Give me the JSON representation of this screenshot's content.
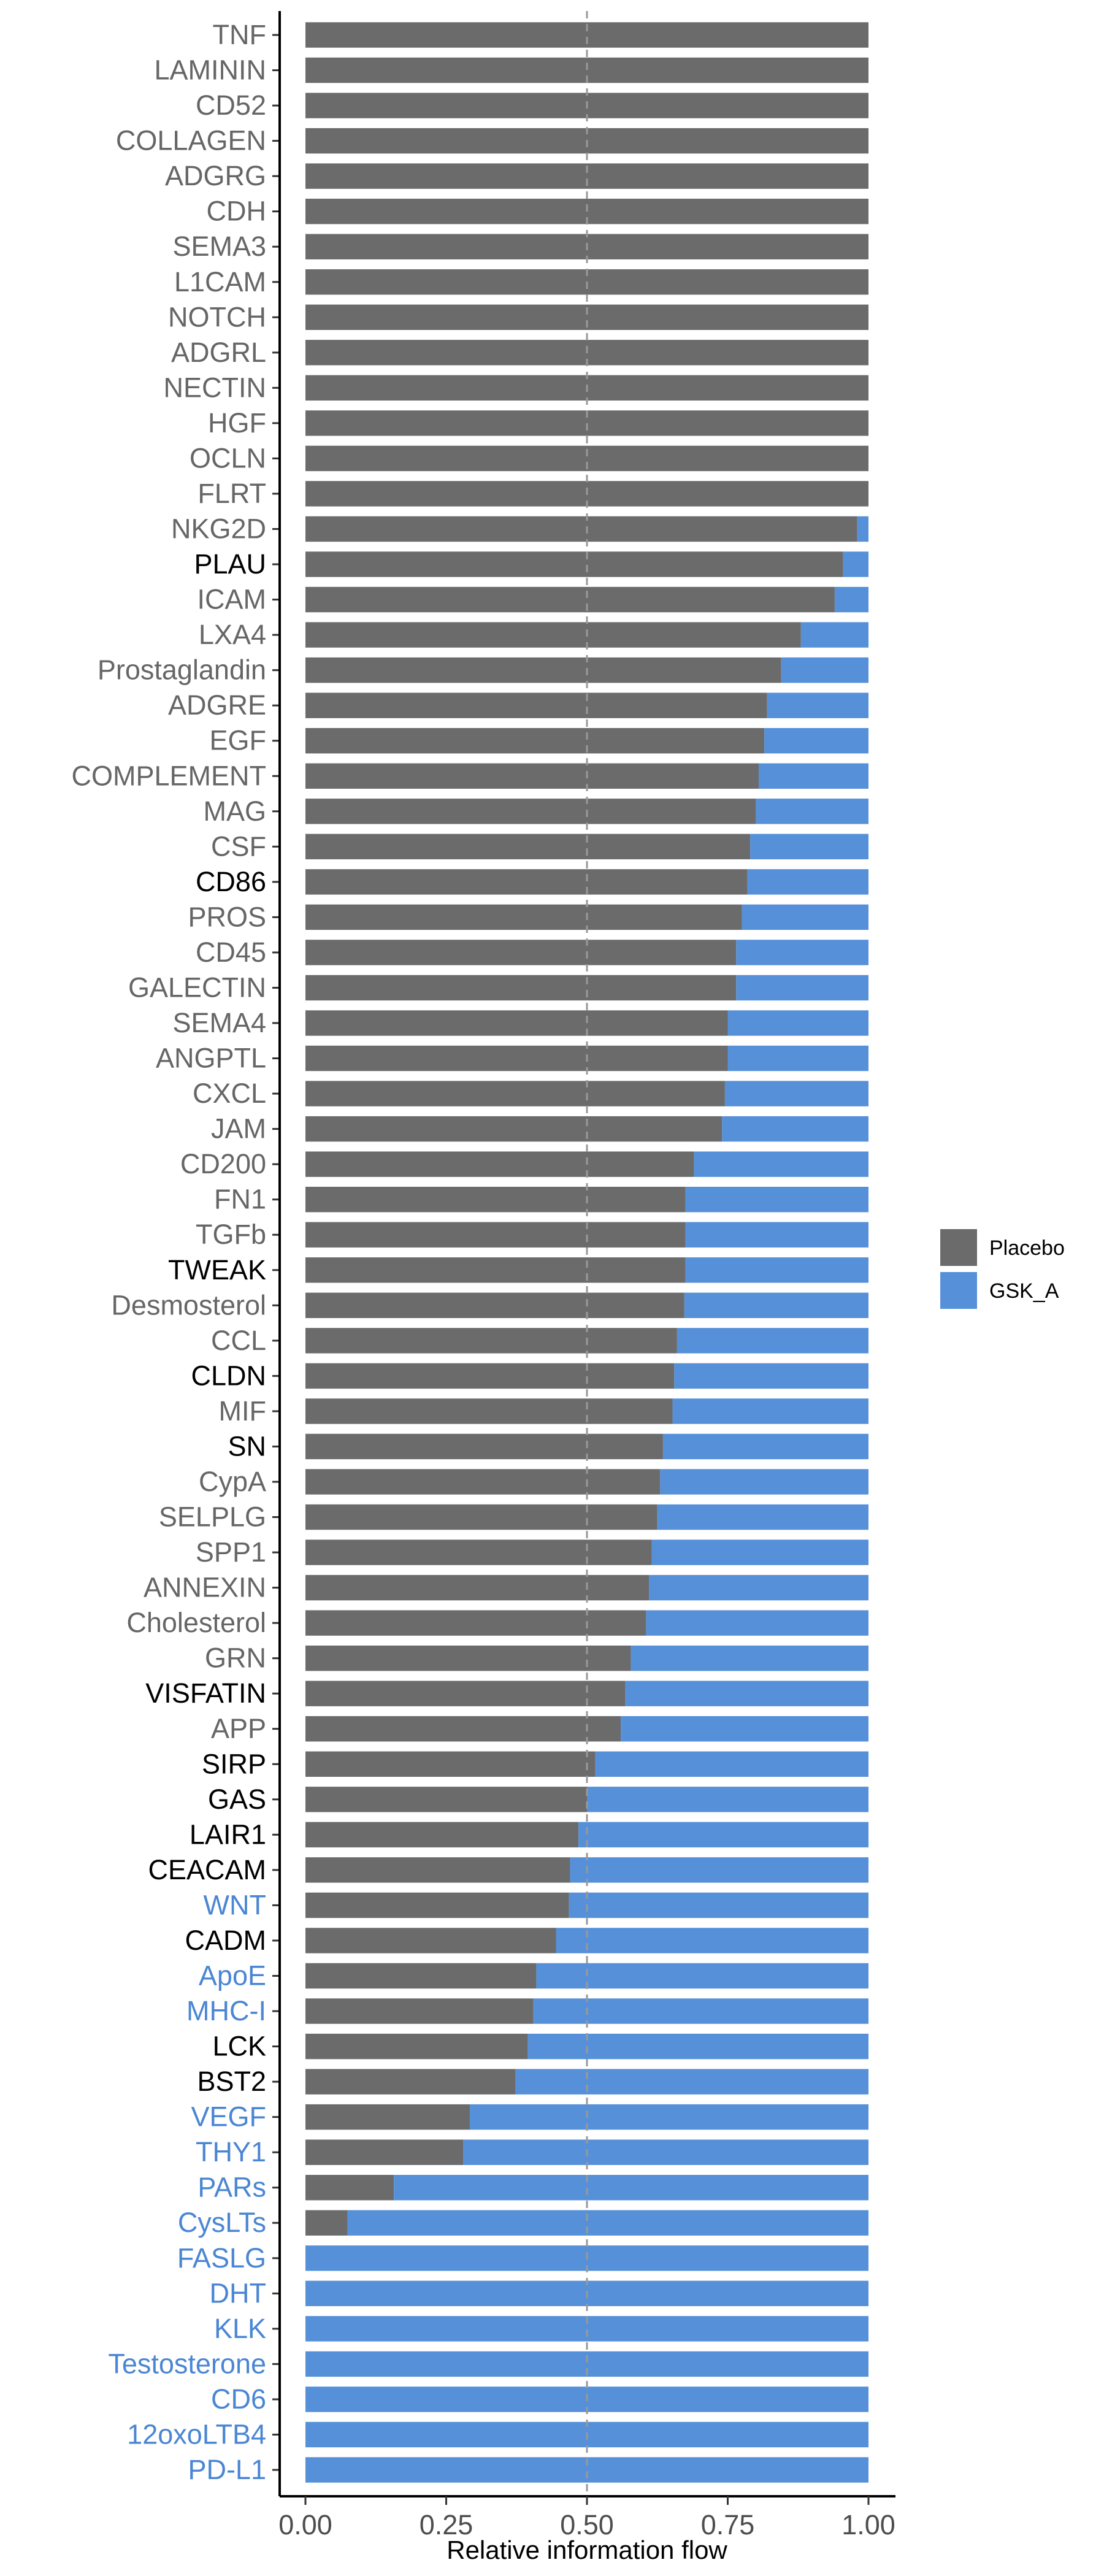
{
  "chart_data": {
    "type": "bar",
    "orientation": "horizontal",
    "stacked": true,
    "xlabel": "Relative information flow",
    "xlim": [
      0,
      1.05
    ],
    "xticks": [
      0.0,
      0.25,
      0.5,
      0.75,
      1.0
    ],
    "xtick_labels": [
      "0.00",
      "0.25",
      "0.50",
      "0.75",
      "1.00"
    ],
    "reference_line": 0.5,
    "legend_position": "right",
    "categories": [
      "TNF",
      "LAMININ",
      "CD52",
      "COLLAGEN",
      "ADGRG",
      "CDH",
      "SEMA3",
      "L1CAM",
      "NOTCH",
      "ADGRL",
      "NECTIN",
      "HGF",
      "OCLN",
      "FLRT",
      "NKG2D",
      "PLAU",
      "ICAM",
      "LXA4",
      "Prostaglandin",
      "ADGRE",
      "EGF",
      "COMPLEMENT",
      "MAG",
      "CSF",
      "CD86",
      "PROS",
      "CD45",
      "GALECTIN",
      "SEMA4",
      "ANGPTL",
      "CXCL",
      "JAM",
      "CD200",
      "FN1",
      "TGFb",
      "TWEAK",
      "Desmosterol",
      "CCL",
      "CLDN",
      "MIF",
      "SN",
      "CypA",
      "SELPLG",
      "SPP1",
      "ANNEXIN",
      "Cholesterol",
      "GRN",
      "VISFATIN",
      "APP",
      "SIRP",
      "GAS",
      "LAIR1",
      "CEACAM",
      "WNT",
      "CADM",
      "ApoE",
      "MHC-I",
      "LCK",
      "BST2",
      "VEGF",
      "THY1",
      "PARs",
      "CysLTs",
      "FASLG",
      "DHT",
      "KLK",
      "Testosterone",
      "CD6",
      "12oxoLTB4",
      "PD-L1"
    ],
    "label_colors": [
      "#666666",
      "#666666",
      "#666666",
      "#666666",
      "#666666",
      "#666666",
      "#666666",
      "#666666",
      "#666666",
      "#666666",
      "#666666",
      "#666666",
      "#666666",
      "#666666",
      "#666666",
      "#000000",
      "#666666",
      "#666666",
      "#666666",
      "#666666",
      "#666666",
      "#666666",
      "#666666",
      "#666666",
      "#000000",
      "#666666",
      "#666666",
      "#666666",
      "#666666",
      "#666666",
      "#666666",
      "#666666",
      "#666666",
      "#666666",
      "#666666",
      "#000000",
      "#666666",
      "#666666",
      "#000000",
      "#666666",
      "#000000",
      "#666666",
      "#666666",
      "#666666",
      "#666666",
      "#666666",
      "#666666",
      "#000000",
      "#666666",
      "#000000",
      "#000000",
      "#000000",
      "#000000",
      "#4a86d4",
      "#000000",
      "#4a86d4",
      "#4a86d4",
      "#000000",
      "#000000",
      "#4a86d4",
      "#4a86d4",
      "#4a86d4",
      "#4a86d4",
      "#4a86d4",
      "#4a86d4",
      "#4a86d4",
      "#4a86d4",
      "#4a86d4",
      "#4a86d4",
      "#4a86d4"
    ],
    "series": [
      {
        "name": "Placebo",
        "color": "#6b6b6b",
        "values": [
          1.0,
          1.0,
          1.0,
          1.0,
          1.0,
          1.0,
          1.0,
          1.0,
          1.0,
          1.0,
          1.0,
          1.0,
          1.0,
          1.0,
          0.98,
          0.955,
          0.94,
          0.88,
          0.845,
          0.82,
          0.815,
          0.805,
          0.8,
          0.79,
          0.785,
          0.775,
          0.765,
          0.765,
          0.75,
          0.75,
          0.745,
          0.74,
          0.69,
          0.675,
          0.675,
          0.675,
          0.673,
          0.66,
          0.655,
          0.652,
          0.635,
          0.63,
          0.625,
          0.615,
          0.61,
          0.605,
          0.578,
          0.568,
          0.56,
          0.515,
          0.5,
          0.485,
          0.47,
          0.468,
          0.445,
          0.41,
          0.405,
          0.395,
          0.373,
          0.292,
          0.28,
          0.157,
          0.075,
          0.0,
          0.0,
          0.0,
          0.0,
          0.0,
          0.0,
          0.0
        ]
      },
      {
        "name": "GSK_A",
        "color": "#5590d9",
        "values": [
          0.0,
          0.0,
          0.0,
          0.0,
          0.0,
          0.0,
          0.0,
          0.0,
          0.0,
          0.0,
          0.0,
          0.0,
          0.0,
          0.0,
          0.02,
          0.045,
          0.06,
          0.12,
          0.155,
          0.18,
          0.185,
          0.195,
          0.2,
          0.21,
          0.215,
          0.225,
          0.235,
          0.235,
          0.25,
          0.25,
          0.255,
          0.26,
          0.31,
          0.325,
          0.325,
          0.325,
          0.327,
          0.34,
          0.345,
          0.348,
          0.365,
          0.37,
          0.375,
          0.385,
          0.39,
          0.395,
          0.422,
          0.432,
          0.44,
          0.485,
          0.5,
          0.515,
          0.53,
          0.532,
          0.555,
          0.59,
          0.595,
          0.605,
          0.627,
          0.708,
          0.72,
          0.843,
          0.925,
          1.0,
          1.0,
          1.0,
          1.0,
          1.0,
          1.0,
          1.0
        ]
      }
    ]
  }
}
